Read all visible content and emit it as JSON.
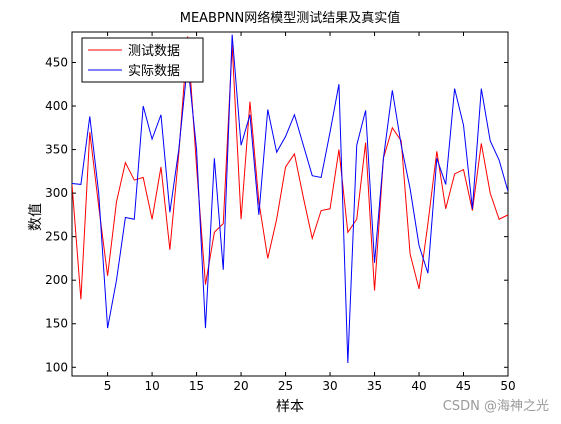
{
  "watermark": "CSDN @海神之光",
  "chart_data": {
    "type": "line",
    "title": "MEABPNN网络模型测试结果及真实值",
    "xlabel": "样本",
    "ylabel": "数值",
    "xlim": [
      1,
      50
    ],
    "ylim": [
      90,
      485
    ],
    "xticks": [
      5,
      10,
      15,
      20,
      25,
      30,
      35,
      40,
      45,
      50
    ],
    "yticks": [
      100,
      150,
      200,
      250,
      300,
      350,
      400,
      450
    ],
    "grid": false,
    "legend_position": "top-left",
    "x": [
      1,
      2,
      3,
      4,
      5,
      6,
      7,
      8,
      9,
      10,
      11,
      12,
      13,
      14,
      15,
      16,
      17,
      18,
      19,
      20,
      21,
      22,
      23,
      24,
      25,
      26,
      27,
      28,
      29,
      30,
      31,
      32,
      33,
      34,
      35,
      36,
      37,
      38,
      39,
      40,
      41,
      42,
      43,
      44,
      45,
      46,
      47,
      48,
      49,
      50
    ],
    "series": [
      {
        "name": "测试数据",
        "color": "#ff0000",
        "values": [
          310,
          178,
          370,
          285,
          205,
          290,
          335,
          315,
          318,
          270,
          330,
          235,
          345,
          480,
          330,
          195,
          255,
          265,
          470,
          270,
          405,
          290,
          225,
          270,
          330,
          345,
          295,
          248,
          280,
          282,
          350,
          255,
          270,
          358,
          188,
          340,
          375,
          360,
          230,
          190,
          265,
          348,
          282,
          322,
          327,
          280,
          357,
          300,
          270,
          275
        ]
      },
      {
        "name": "实际数据",
        "color": "#0000ff",
        "values": [
          311,
          310,
          388,
          300,
          145,
          200,
          272,
          270,
          400,
          362,
          390,
          278,
          350,
          450,
          350,
          145,
          340,
          212,
          482,
          355,
          390,
          275,
          396,
          347,
          365,
          390,
          355,
          320,
          318,
          370,
          425,
          105,
          355,
          395,
          220,
          340,
          418,
          355,
          305,
          240,
          208,
          340,
          310,
          420,
          378,
          282,
          420,
          360,
          338,
          302
        ]
      }
    ]
  }
}
